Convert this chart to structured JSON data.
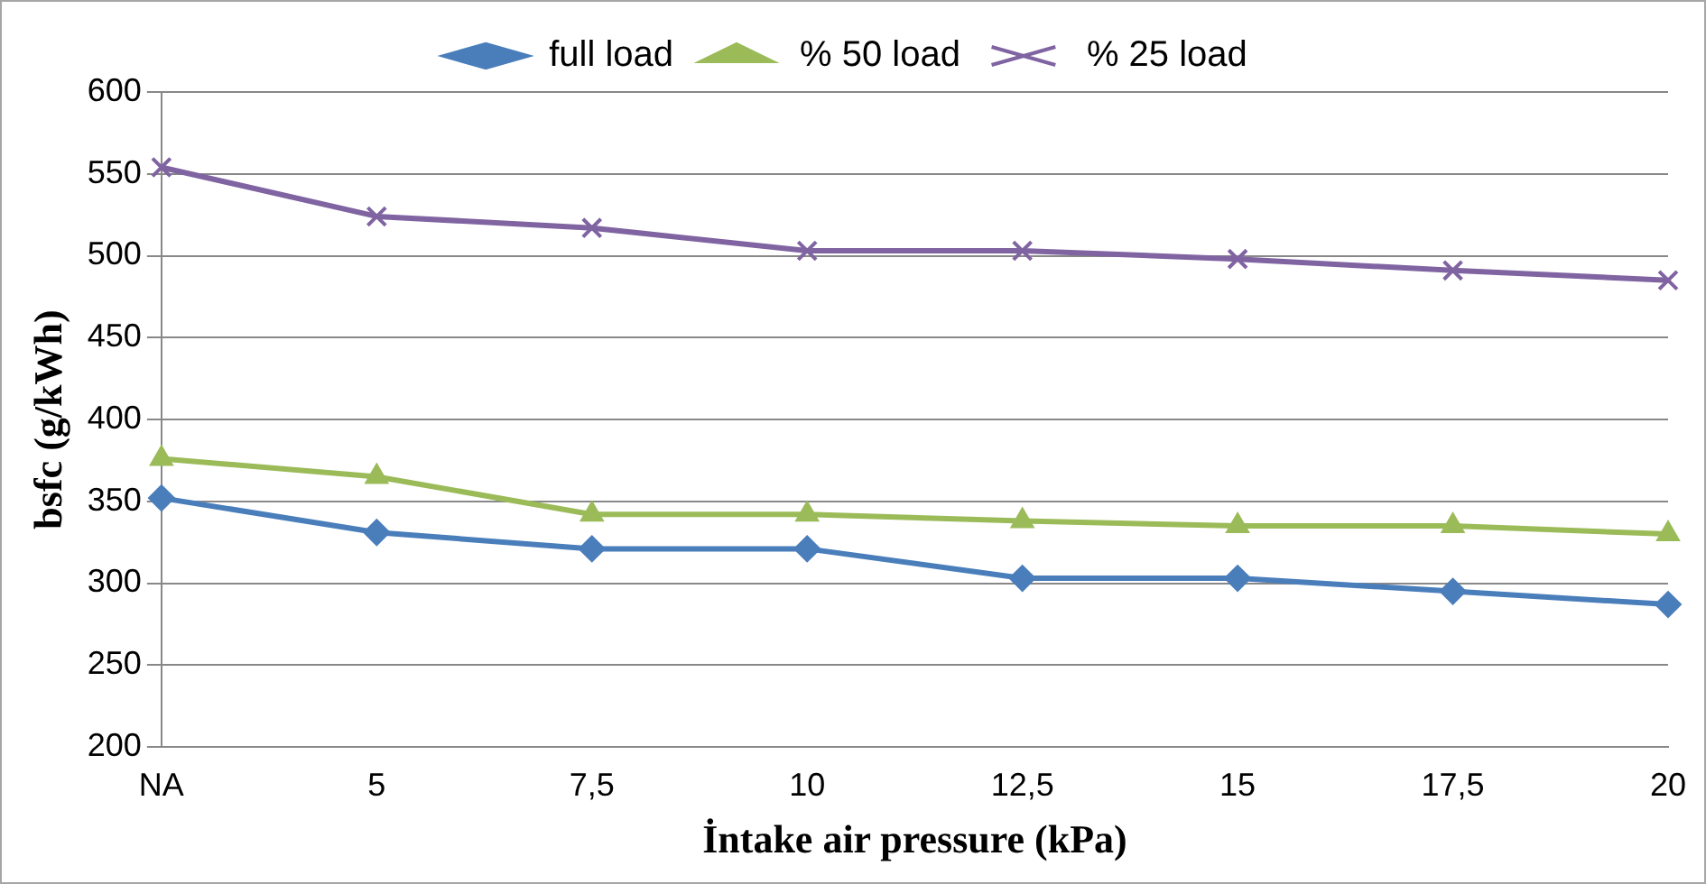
{
  "chart_data": {
    "type": "line",
    "xlabel": "İntake air pressure (kPa)",
    "ylabel": "bsfc (g/kWh)",
    "categories": [
      "NA",
      "5",
      "7,5",
      "10",
      "12,5",
      "15",
      "17,5",
      "20"
    ],
    "series": [
      {
        "name": "full load",
        "color": "#4a7ebb",
        "marker": "diamond",
        "values": [
          352,
          331,
          321,
          321,
          303,
          303,
          295,
          287
        ]
      },
      {
        "name": "% 50 load",
        "color": "#9bbb59",
        "marker": "triangle",
        "values": [
          376,
          365,
          342,
          342,
          338,
          335,
          335,
          330
        ]
      },
      {
        "name": "% 25 load",
        "color": "#8064a2",
        "marker": "cross",
        "values": [
          554,
          524,
          517,
          503,
          503,
          498,
          491,
          485
        ]
      }
    ],
    "ylim": [
      200,
      600
    ],
    "yticks": [
      200,
      250,
      300,
      350,
      400,
      450,
      500,
      550,
      600
    ],
    "grid": "y",
    "legend": "top"
  }
}
